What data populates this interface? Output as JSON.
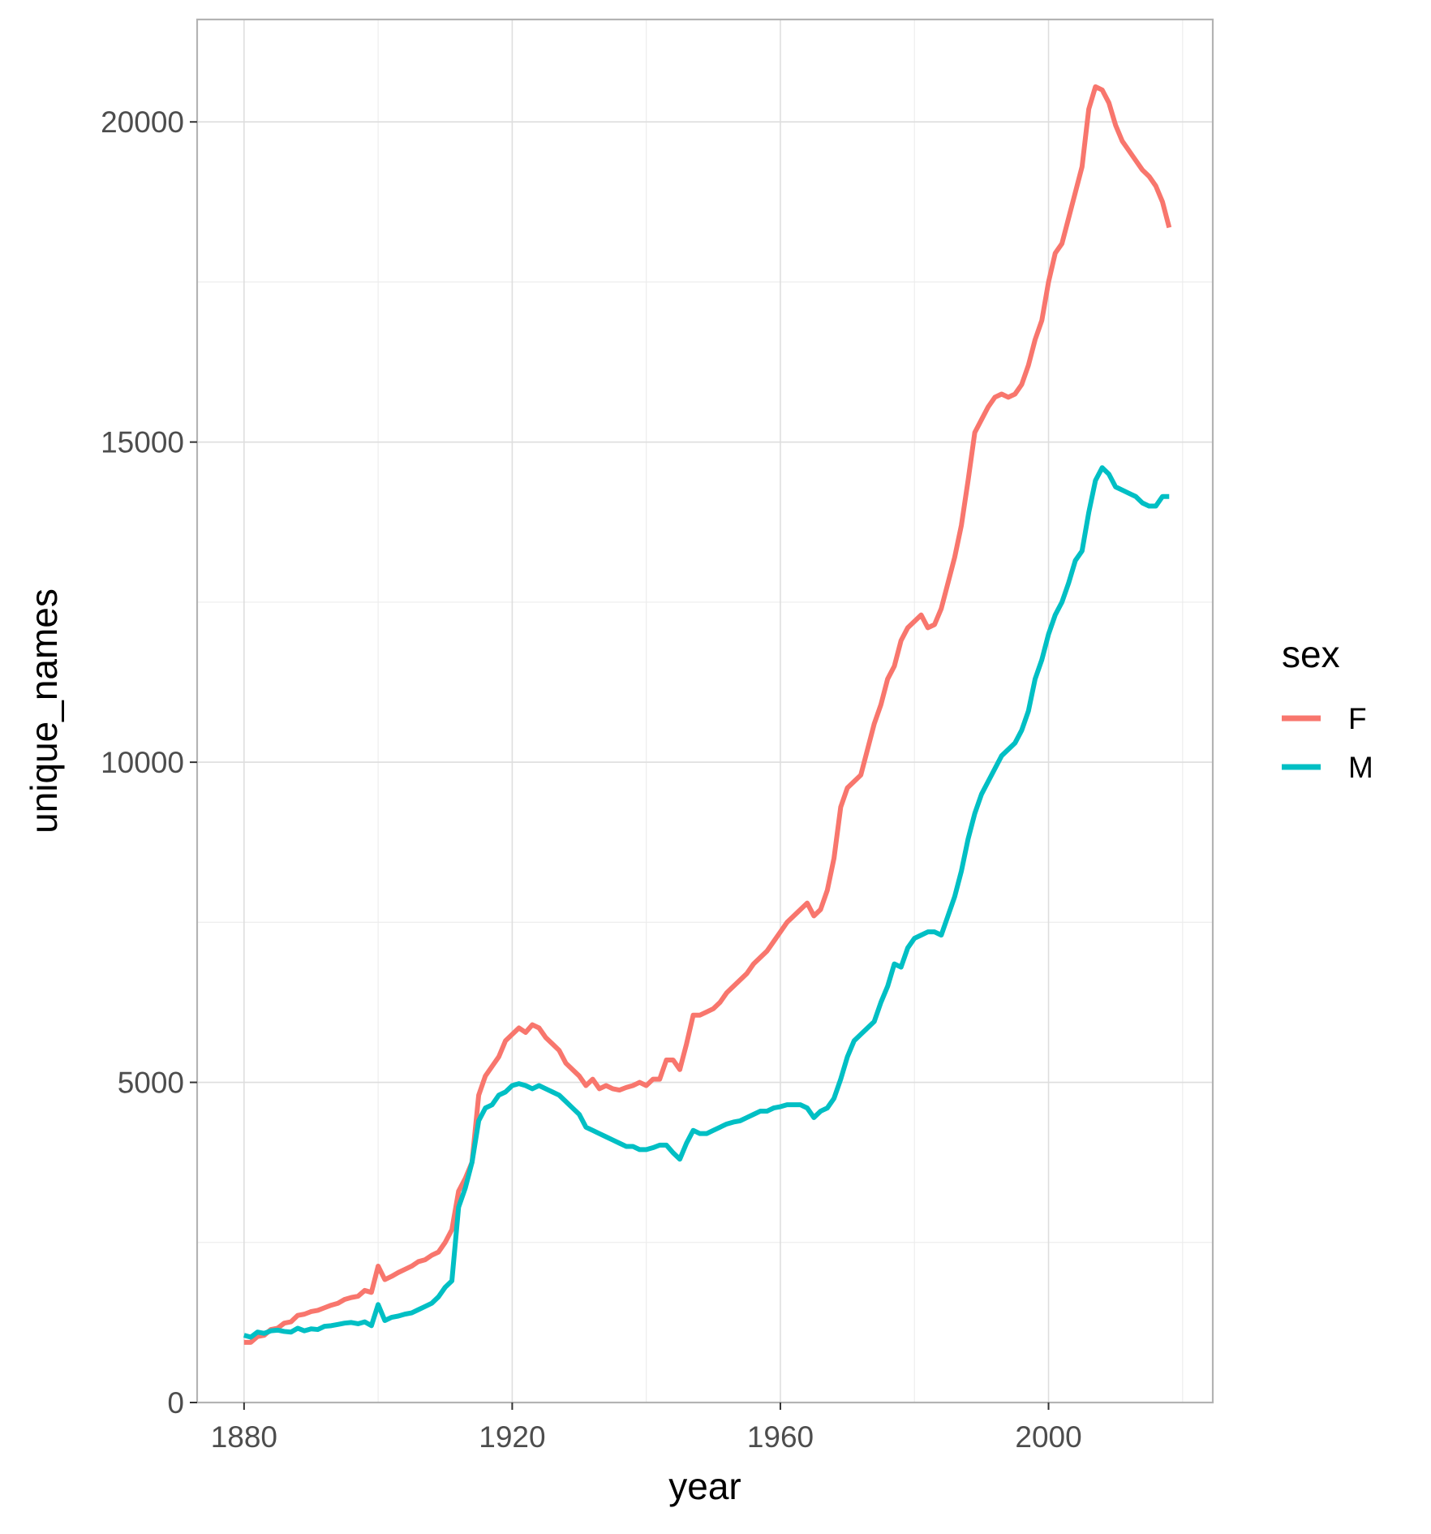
{
  "chart_data": {
    "type": "line",
    "title": "",
    "xlabel": "year",
    "ylabel": "unique_names",
    "xlim": [
      1873,
      2024.5
    ],
    "ylim": [
      0,
      21600
    ],
    "x_ticks": [
      1880,
      1920,
      1960,
      2000
    ],
    "x_minor_ticks": [
      1900,
      1940,
      1980,
      2020
    ],
    "y_ticks": [
      0,
      5000,
      10000,
      15000,
      20000
    ],
    "y_minor_ticks": [
      2500,
      7500,
      12500,
      17500
    ],
    "grid": true,
    "legend": {
      "title": "sex",
      "position": "right"
    },
    "series": [
      {
        "name": "F",
        "color": "#F8766D",
        "points": [
          [
            1880,
            940
          ],
          [
            1881,
            940
          ],
          [
            1882,
            1030
          ],
          [
            1883,
            1050
          ],
          [
            1884,
            1140
          ],
          [
            1885,
            1160
          ],
          [
            1886,
            1240
          ],
          [
            1887,
            1260
          ],
          [
            1888,
            1360
          ],
          [
            1889,
            1380
          ],
          [
            1890,
            1420
          ],
          [
            1891,
            1440
          ],
          [
            1892,
            1480
          ],
          [
            1893,
            1520
          ],
          [
            1894,
            1550
          ],
          [
            1895,
            1610
          ],
          [
            1896,
            1640
          ],
          [
            1897,
            1660
          ],
          [
            1898,
            1750
          ],
          [
            1899,
            1720
          ],
          [
            1900,
            2130
          ],
          [
            1901,
            1920
          ],
          [
            1902,
            1970
          ],
          [
            1903,
            2030
          ],
          [
            1904,
            2080
          ],
          [
            1905,
            2130
          ],
          [
            1906,
            2200
          ],
          [
            1907,
            2230
          ],
          [
            1908,
            2300
          ],
          [
            1909,
            2350
          ],
          [
            1910,
            2500
          ],
          [
            1911,
            2700
          ],
          [
            1912,
            3300
          ],
          [
            1913,
            3500
          ],
          [
            1914,
            3750
          ],
          [
            1915,
            4800
          ],
          [
            1916,
            5100
          ],
          [
            1917,
            5250
          ],
          [
            1918,
            5400
          ],
          [
            1919,
            5650
          ],
          [
            1920,
            5750
          ],
          [
            1921,
            5850
          ],
          [
            1922,
            5780
          ],
          [
            1923,
            5900
          ],
          [
            1924,
            5850
          ],
          [
            1925,
            5700
          ],
          [
            1926,
            5600
          ],
          [
            1927,
            5500
          ],
          [
            1928,
            5300
          ],
          [
            1929,
            5200
          ],
          [
            1930,
            5100
          ],
          [
            1931,
            4950
          ],
          [
            1932,
            5050
          ],
          [
            1933,
            4900
          ],
          [
            1934,
            4950
          ],
          [
            1935,
            4900
          ],
          [
            1936,
            4880
          ],
          [
            1937,
            4920
          ],
          [
            1938,
            4950
          ],
          [
            1939,
            5000
          ],
          [
            1940,
            4950
          ],
          [
            1941,
            5050
          ],
          [
            1942,
            5050
          ],
          [
            1943,
            5350
          ],
          [
            1944,
            5350
          ],
          [
            1945,
            5200
          ],
          [
            1946,
            5600
          ],
          [
            1947,
            6050
          ],
          [
            1948,
            6050
          ],
          [
            1949,
            6100
          ],
          [
            1950,
            6150
          ],
          [
            1951,
            6250
          ],
          [
            1952,
            6400
          ],
          [
            1953,
            6500
          ],
          [
            1954,
            6600
          ],
          [
            1955,
            6700
          ],
          [
            1956,
            6850
          ],
          [
            1957,
            6950
          ],
          [
            1958,
            7050
          ],
          [
            1959,
            7200
          ],
          [
            1960,
            7350
          ],
          [
            1961,
            7500
          ],
          [
            1962,
            7600
          ],
          [
            1963,
            7700
          ],
          [
            1964,
            7800
          ],
          [
            1965,
            7600
          ],
          [
            1966,
            7700
          ],
          [
            1967,
            8000
          ],
          [
            1968,
            8500
          ],
          [
            1969,
            9300
          ],
          [
            1970,
            9600
          ],
          [
            1971,
            9700
          ],
          [
            1972,
            9800
          ],
          [
            1973,
            10200
          ],
          [
            1974,
            10600
          ],
          [
            1975,
            10900
          ],
          [
            1976,
            11300
          ],
          [
            1977,
            11500
          ],
          [
            1978,
            11900
          ],
          [
            1979,
            12100
          ],
          [
            1980,
            12200
          ],
          [
            1981,
            12300
          ],
          [
            1982,
            12100
          ],
          [
            1983,
            12150
          ],
          [
            1984,
            12400
          ],
          [
            1985,
            12800
          ],
          [
            1986,
            13200
          ],
          [
            1987,
            13700
          ],
          [
            1988,
            14400
          ],
          [
            1989,
            15150
          ],
          [
            1990,
            15350
          ],
          [
            1991,
            15550
          ],
          [
            1992,
            15700
          ],
          [
            1993,
            15750
          ],
          [
            1994,
            15700
          ],
          [
            1995,
            15750
          ],
          [
            1996,
            15900
          ],
          [
            1997,
            16200
          ],
          [
            1998,
            16600
          ],
          [
            1999,
            16900
          ],
          [
            2000,
            17500
          ],
          [
            2001,
            17950
          ],
          [
            2002,
            18100
          ],
          [
            2003,
            18500
          ],
          [
            2004,
            18900
          ],
          [
            2005,
            19300
          ],
          [
            2006,
            20200
          ],
          [
            2007,
            20550
          ],
          [
            2008,
            20500
          ],
          [
            2009,
            20300
          ],
          [
            2010,
            19950
          ],
          [
            2011,
            19700
          ],
          [
            2012,
            19550
          ],
          [
            2013,
            19400
          ],
          [
            2014,
            19250
          ],
          [
            2015,
            19150
          ],
          [
            2016,
            19000
          ],
          [
            2017,
            18750
          ],
          [
            2018,
            18350
          ]
        ]
      },
      {
        "name": "M",
        "color": "#00BFC4",
        "points": [
          [
            1880,
            1050
          ],
          [
            1881,
            1020
          ],
          [
            1882,
            1100
          ],
          [
            1883,
            1080
          ],
          [
            1884,
            1120
          ],
          [
            1885,
            1130
          ],
          [
            1886,
            1110
          ],
          [
            1887,
            1100
          ],
          [
            1888,
            1160
          ],
          [
            1889,
            1120
          ],
          [
            1890,
            1150
          ],
          [
            1891,
            1140
          ],
          [
            1892,
            1190
          ],
          [
            1893,
            1200
          ],
          [
            1894,
            1220
          ],
          [
            1895,
            1240
          ],
          [
            1896,
            1250
          ],
          [
            1897,
            1230
          ],
          [
            1898,
            1260
          ],
          [
            1899,
            1200
          ],
          [
            1900,
            1530
          ],
          [
            1901,
            1280
          ],
          [
            1902,
            1330
          ],
          [
            1903,
            1350
          ],
          [
            1904,
            1380
          ],
          [
            1905,
            1400
          ],
          [
            1906,
            1450
          ],
          [
            1907,
            1500
          ],
          [
            1908,
            1550
          ],
          [
            1909,
            1650
          ],
          [
            1910,
            1800
          ],
          [
            1911,
            1900
          ],
          [
            1912,
            3050
          ],
          [
            1913,
            3350
          ],
          [
            1914,
            3750
          ],
          [
            1915,
            4400
          ],
          [
            1916,
            4600
          ],
          [
            1917,
            4650
          ],
          [
            1918,
            4800
          ],
          [
            1919,
            4850
          ],
          [
            1920,
            4950
          ],
          [
            1921,
            4980
          ],
          [
            1922,
            4950
          ],
          [
            1923,
            4900
          ],
          [
            1924,
            4950
          ],
          [
            1925,
            4900
          ],
          [
            1926,
            4850
          ],
          [
            1927,
            4800
          ],
          [
            1928,
            4700
          ],
          [
            1929,
            4600
          ],
          [
            1930,
            4500
          ],
          [
            1931,
            4300
          ],
          [
            1932,
            4250
          ],
          [
            1933,
            4200
          ],
          [
            1934,
            4150
          ],
          [
            1935,
            4100
          ],
          [
            1936,
            4050
          ],
          [
            1937,
            4000
          ],
          [
            1938,
            4000
          ],
          [
            1939,
            3950
          ],
          [
            1940,
            3950
          ],
          [
            1941,
            3980
          ],
          [
            1942,
            4020
          ],
          [
            1943,
            4020
          ],
          [
            1944,
            3900
          ],
          [
            1945,
            3800
          ],
          [
            1946,
            4050
          ],
          [
            1947,
            4250
          ],
          [
            1948,
            4200
          ],
          [
            1949,
            4200
          ],
          [
            1950,
            4250
          ],
          [
            1951,
            4300
          ],
          [
            1952,
            4350
          ],
          [
            1953,
            4380
          ],
          [
            1954,
            4400
          ],
          [
            1955,
            4450
          ],
          [
            1956,
            4500
          ],
          [
            1957,
            4550
          ],
          [
            1958,
            4550
          ],
          [
            1959,
            4600
          ],
          [
            1960,
            4620
          ],
          [
            1961,
            4650
          ],
          [
            1962,
            4650
          ],
          [
            1963,
            4650
          ],
          [
            1964,
            4600
          ],
          [
            1965,
            4450
          ],
          [
            1966,
            4550
          ],
          [
            1967,
            4600
          ],
          [
            1968,
            4750
          ],
          [
            1969,
            5050
          ],
          [
            1970,
            5400
          ],
          [
            1971,
            5650
          ],
          [
            1972,
            5750
          ],
          [
            1973,
            5850
          ],
          [
            1974,
            5950
          ],
          [
            1975,
            6250
          ],
          [
            1976,
            6500
          ],
          [
            1977,
            6850
          ],
          [
            1978,
            6800
          ],
          [
            1979,
            7100
          ],
          [
            1980,
            7250
          ],
          [
            1981,
            7300
          ],
          [
            1982,
            7350
          ],
          [
            1983,
            7350
          ],
          [
            1984,
            7300
          ],
          [
            1985,
            7600
          ],
          [
            1986,
            7900
          ],
          [
            1987,
            8300
          ],
          [
            1988,
            8800
          ],
          [
            1989,
            9200
          ],
          [
            1990,
            9500
          ],
          [
            1991,
            9700
          ],
          [
            1992,
            9900
          ],
          [
            1993,
            10100
          ],
          [
            1994,
            10200
          ],
          [
            1995,
            10300
          ],
          [
            1996,
            10500
          ],
          [
            1997,
            10800
          ],
          [
            1998,
            11300
          ],
          [
            1999,
            11600
          ],
          [
            2000,
            12000
          ],
          [
            2001,
            12300
          ],
          [
            2002,
            12500
          ],
          [
            2003,
            12800
          ],
          [
            2004,
            13150
          ],
          [
            2005,
            13300
          ],
          [
            2006,
            13900
          ],
          [
            2007,
            14400
          ],
          [
            2008,
            14600
          ],
          [
            2009,
            14500
          ],
          [
            2010,
            14300
          ],
          [
            2011,
            14250
          ],
          [
            2012,
            14200
          ],
          [
            2013,
            14150
          ],
          [
            2014,
            14050
          ],
          [
            2015,
            14000
          ],
          [
            2016,
            14000
          ],
          [
            2017,
            14150
          ],
          [
            2018,
            14150
          ]
        ]
      }
    ]
  }
}
